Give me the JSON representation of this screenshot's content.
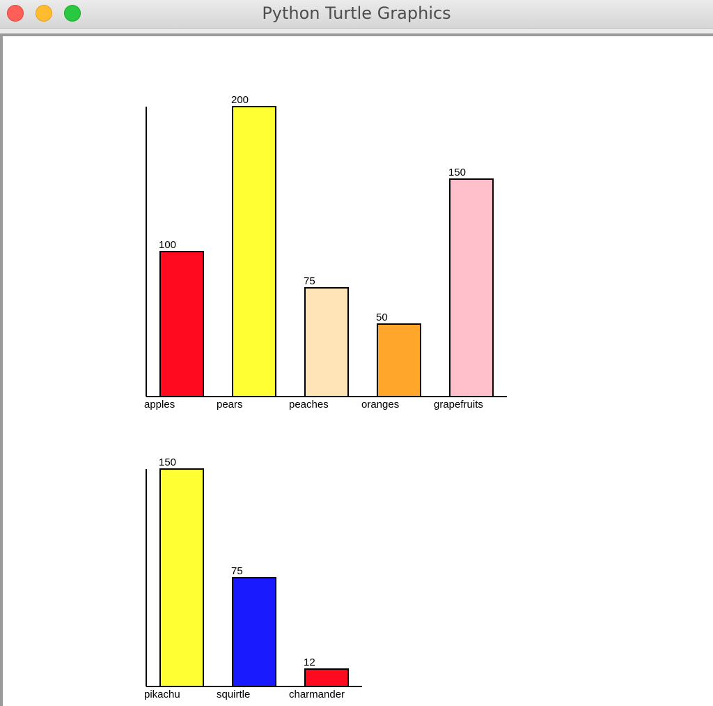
{
  "window": {
    "title": "Python Turtle Graphics",
    "controls": {
      "close_color": "#ff5f57",
      "minimize_color": "#febc2e",
      "zoom_color": "#28c840"
    }
  },
  "chart_data": [
    {
      "type": "bar",
      "categories": [
        "apples",
        "pears",
        "peaches",
        "oranges",
        "grapefruits"
      ],
      "values": [
        100,
        200,
        75,
        50,
        150
      ],
      "data_labels": [
        "100",
        "200",
        "75",
        "50",
        "150"
      ],
      "colors": [
        "#ff0a1e",
        "#ffff33",
        "#ffe4b8",
        "#ffa62b",
        "#ffc0cb"
      ],
      "title": "",
      "xlabel": "",
      "ylabel": "",
      "ylim": [
        0,
        200
      ],
      "grid": false
    },
    {
      "type": "bar",
      "categories": [
        "pikachu",
        "squirtle",
        "charmander"
      ],
      "values": [
        150,
        75,
        12
      ],
      "data_labels": [
        "150",
        "75",
        "12"
      ],
      "colors": [
        "#ffff33",
        "#1a1aff",
        "#ff0a1e"
      ],
      "title": "",
      "xlabel": "",
      "ylabel": "",
      "ylim": [
        0,
        150
      ],
      "grid": false
    }
  ]
}
